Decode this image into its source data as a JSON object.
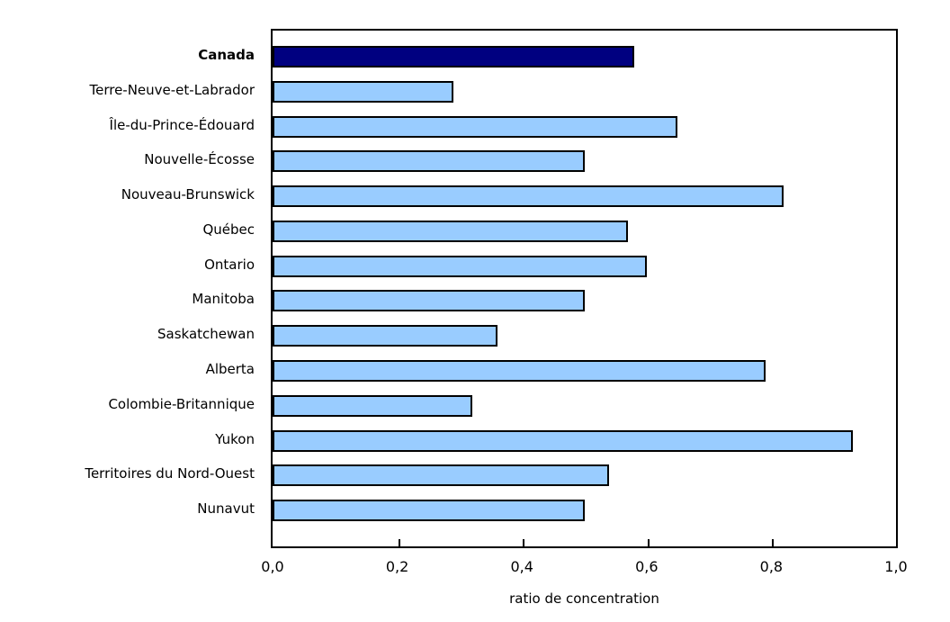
{
  "chart_data": {
    "type": "bar",
    "orientation": "horizontal",
    "title": "",
    "xlabel": "ratio de concentration",
    "ylabel": "",
    "xlim": [
      0,
      1
    ],
    "grid": false,
    "legend": false,
    "categories": [
      "Canada",
      "Terre-Neuve-et-Labrador",
      "Île-du-Prince-Édouard",
      "Nouvelle-Écosse",
      "Nouveau-Brunswick",
      "Québec",
      "Ontario",
      "Manitoba",
      "Saskatchewan",
      "Alberta",
      "Colombie-Britannique",
      "Yukon",
      "Territoires du Nord-Ouest",
      "Nunavut"
    ],
    "values": [
      0.58,
      0.29,
      0.65,
      0.5,
      0.82,
      0.57,
      0.6,
      0.5,
      0.36,
      0.79,
      0.32,
      0.93,
      0.54,
      0.5
    ],
    "highlight_category": "Canada",
    "xticks": [
      0,
      0.2,
      0.4,
      0.6,
      0.8,
      1.0
    ],
    "xtick_labels": [
      "0,0",
      "0,2",
      "0,4",
      "0,6",
      "0,8",
      "1,0"
    ],
    "inner_tick_positions": [
      0.2,
      0.4,
      0.6,
      0.8
    ],
    "colors": {
      "highlight_bar": "#000080",
      "default_bar": "#99CCFF",
      "bar_border": "#000000",
      "axis": "#000000",
      "text": "#000000",
      "background": "#FFFFFF"
    }
  }
}
